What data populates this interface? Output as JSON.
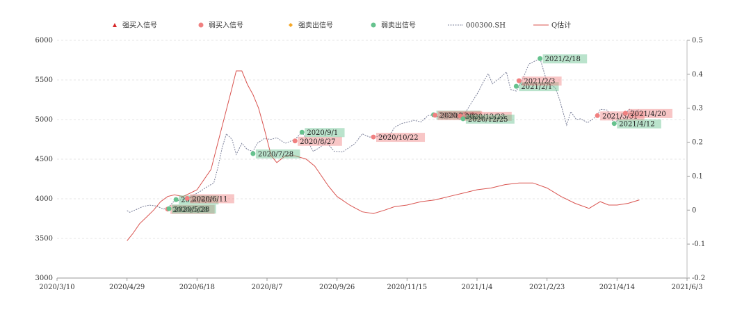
{
  "chart_data": {
    "type": "line",
    "legend": {
      "placement": "top",
      "items": [
        {
          "key": "strong_buy",
          "label": "强买入信号",
          "marker": "triangle",
          "color": "#d62728"
        },
        {
          "key": "weak_buy",
          "label": "弱买入信号",
          "marker": "circle",
          "color": "#f08080"
        },
        {
          "key": "strong_sell",
          "label": "强卖出信号",
          "marker": "diamond",
          "color": "#f5a623"
        },
        {
          "key": "weak_sell",
          "label": "弱卖出信号",
          "marker": "circle",
          "color": "#66c28e"
        },
        {
          "key": "index",
          "label": "000300.SH",
          "marker": "dotted-line",
          "color": "#7a7f99"
        },
        {
          "key": "q",
          "label": "Q估计",
          "marker": "line",
          "color": "#d9534f"
        }
      ]
    },
    "x_axis": {
      "min": "2020-03-10",
      "max": "2021-06-03",
      "ticks": [
        "2020/3/10",
        "2020/4/29",
        "2020/6/18",
        "2020/8/7",
        "2020/9/26",
        "2020/11/15",
        "2021/1/4",
        "2021/2/23",
        "2021/4/14",
        "2021/6/3"
      ]
    },
    "y_left": {
      "min": 3000,
      "max": 6000,
      "ticks": [
        "3000",
        "3500",
        "4000",
        "4500",
        "5000",
        "5500",
        "6000"
      ]
    },
    "y_right": {
      "min": -0.2,
      "max": 0.5,
      "ticks": [
        "-0.2",
        "-0.1",
        "0",
        "0.1",
        "0.2",
        "0.3",
        "0.4",
        "0.5"
      ]
    },
    "grid": true,
    "series": [
      {
        "name": "000300.SH",
        "axis": "left",
        "points": [
          [
            "2020-04-29",
            3850
          ],
          [
            "2020-05-01",
            3830
          ],
          [
            "2020-05-05",
            3860
          ],
          [
            "2020-05-10",
            3900
          ],
          [
            "2020-05-15",
            3920
          ],
          [
            "2020-05-20",
            3910
          ],
          [
            "2020-05-25",
            3870
          ],
          [
            "2020-05-28",
            3880
          ],
          [
            "2020-06-01",
            3960
          ],
          [
            "2020-06-05",
            3980
          ],
          [
            "2020-06-10",
            4000
          ],
          [
            "2020-06-15",
            4040
          ],
          [
            "2020-06-20",
            4090
          ],
          [
            "2020-06-25",
            4150
          ],
          [
            "2020-06-30",
            4200
          ],
          [
            "2020-07-03",
            4400
          ],
          [
            "2020-07-06",
            4650
          ],
          [
            "2020-07-09",
            4820
          ],
          [
            "2020-07-13",
            4750
          ],
          [
            "2020-07-16",
            4560
          ],
          [
            "2020-07-20",
            4700
          ],
          [
            "2020-07-24",
            4620
          ],
          [
            "2020-07-28",
            4600
          ],
          [
            "2020-07-31",
            4700
          ],
          [
            "2020-08-05",
            4760
          ],
          [
            "2020-08-10",
            4750
          ],
          [
            "2020-08-14",
            4770
          ],
          [
            "2020-08-20",
            4700
          ],
          [
            "2020-08-27",
            4750
          ],
          [
            "2020-09-01",
            4840
          ],
          [
            "2020-09-04",
            4760
          ],
          [
            "2020-09-09",
            4600
          ],
          [
            "2020-09-14",
            4650
          ],
          [
            "2020-09-18",
            4720
          ],
          [
            "2020-09-24",
            4600
          ],
          [
            "2020-09-30",
            4590
          ],
          [
            "2020-10-09",
            4700
          ],
          [
            "2020-10-14",
            4820
          ],
          [
            "2020-10-19",
            4780
          ],
          [
            "2020-10-22",
            4780
          ],
          [
            "2020-10-27",
            4790
          ],
          [
            "2020-11-02",
            4780
          ],
          [
            "2020-11-06",
            4900
          ],
          [
            "2020-11-11",
            4950
          ],
          [
            "2020-11-16",
            4970
          ],
          [
            "2020-11-20",
            4990
          ],
          [
            "2020-11-25",
            4970
          ],
          [
            "2020-11-30",
            5050
          ],
          [
            "2020-12-04",
            5060
          ],
          [
            "2020-12-09",
            5020
          ],
          [
            "2020-12-14",
            5010
          ],
          [
            "2020-12-18",
            5050
          ],
          [
            "2020-12-23",
            5000
          ],
          [
            "2020-12-25",
            5040
          ],
          [
            "2020-12-31",
            5210
          ],
          [
            "2021-01-05",
            5350
          ],
          [
            "2021-01-08",
            5460
          ],
          [
            "2021-01-12",
            5580
          ],
          [
            "2021-01-15",
            5450
          ],
          [
            "2021-01-20",
            5520
          ],
          [
            "2021-01-25",
            5600
          ],
          [
            "2021-01-28",
            5380
          ],
          [
            "2021-02-01",
            5360
          ],
          [
            "2021-02-05",
            5480
          ],
          [
            "2021-02-10",
            5700
          ],
          [
            "2021-02-18",
            5770
          ],
          [
            "2021-02-22",
            5530
          ],
          [
            "2021-02-25",
            5450
          ],
          [
            "2021-03-01",
            5400
          ],
          [
            "2021-03-04",
            5250
          ],
          [
            "2021-03-09",
            4930
          ],
          [
            "2021-03-12",
            5100
          ],
          [
            "2021-03-16",
            5000
          ],
          [
            "2021-03-19",
            5010
          ],
          [
            "2021-03-24",
            4960
          ],
          [
            "2021-03-31",
            5050
          ],
          [
            "2021-04-02",
            5130
          ],
          [
            "2021-04-07",
            5120
          ],
          [
            "2021-04-12",
            4950
          ],
          [
            "2021-04-16",
            5020
          ],
          [
            "2021-04-20",
            5080
          ],
          [
            "2021-04-23",
            5130
          ],
          [
            "2021-04-27",
            5100
          ],
          [
            "2021-04-30",
            5130
          ]
        ]
      },
      {
        "name": "Q估计",
        "axis": "right",
        "points": [
          [
            "2020-04-29",
            -0.09
          ],
          [
            "2020-05-03",
            -0.07
          ],
          [
            "2020-05-08",
            -0.04
          ],
          [
            "2020-05-13",
            -0.02
          ],
          [
            "2020-05-18",
            0.0
          ],
          [
            "2020-05-23",
            0.025
          ],
          [
            "2020-05-28",
            0.04
          ],
          [
            "2020-06-02",
            0.045
          ],
          [
            "2020-06-08",
            0.04
          ],
          [
            "2020-06-13",
            0.05
          ],
          [
            "2020-06-18",
            0.06
          ],
          [
            "2020-06-23",
            0.09
          ],
          [
            "2020-06-28",
            0.12
          ],
          [
            "2020-07-03",
            0.2
          ],
          [
            "2020-07-08",
            0.28
          ],
          [
            "2020-07-13",
            0.36
          ],
          [
            "2020-07-16",
            0.41
          ],
          [
            "2020-07-20",
            0.41
          ],
          [
            "2020-07-24",
            0.37
          ],
          [
            "2020-07-28",
            0.34
          ],
          [
            "2020-08-01",
            0.3
          ],
          [
            "2020-08-05",
            0.24
          ],
          [
            "2020-08-10",
            0.16
          ],
          [
            "2020-08-14",
            0.14
          ],
          [
            "2020-08-20",
            0.16
          ],
          [
            "2020-08-27",
            0.16
          ],
          [
            "2020-09-04",
            0.15
          ],
          [
            "2020-09-10",
            0.13
          ],
          [
            "2020-09-15",
            0.1
          ],
          [
            "2020-09-20",
            0.07
          ],
          [
            "2020-09-26",
            0.04
          ],
          [
            "2020-10-05",
            0.015
          ],
          [
            "2020-10-14",
            -0.005
          ],
          [
            "2020-10-22",
            -0.01
          ],
          [
            "2020-10-30",
            0.0
          ],
          [
            "2020-11-06",
            0.01
          ],
          [
            "2020-11-15",
            0.015
          ],
          [
            "2020-11-25",
            0.025
          ],
          [
            "2020-12-05",
            0.03
          ],
          [
            "2020-12-15",
            0.04
          ],
          [
            "2020-12-25",
            0.05
          ],
          [
            "2021-01-04",
            0.06
          ],
          [
            "2021-01-14",
            0.065
          ],
          [
            "2021-01-24",
            0.075
          ],
          [
            "2021-02-03",
            0.08
          ],
          [
            "2021-02-13",
            0.08
          ],
          [
            "2021-02-23",
            0.065
          ],
          [
            "2021-03-05",
            0.04
          ],
          [
            "2021-03-15",
            0.02
          ],
          [
            "2021-03-25",
            0.005
          ],
          [
            "2021-04-02",
            0.025
          ],
          [
            "2021-04-08",
            0.015
          ],
          [
            "2021-04-14",
            0.015
          ],
          [
            "2021-04-22",
            0.02
          ],
          [
            "2021-04-30",
            0.03
          ]
        ]
      }
    ],
    "signals": [
      {
        "date": "2020-05-28",
        "value": 3870,
        "type": "weak_buy",
        "label": "2020/5/28"
      },
      {
        "date": "2020-05-29",
        "value": 3875,
        "type": "weak_sell",
        "label": "2020/5/28"
      },
      {
        "date": "2020-06-03",
        "value": 3990,
        "type": "weak_sell",
        "label": "2020/6/3"
      },
      {
        "date": "2020-06-11",
        "value": 4005,
        "type": "weak_buy",
        "label": "2020/6/11"
      },
      {
        "date": "2020-07-28",
        "value": 4570,
        "type": "weak_sell",
        "label": "2020/7/28"
      },
      {
        "date": "2020-08-27",
        "value": 4730,
        "type": "weak_buy",
        "label": "2020/8/27"
      },
      {
        "date": "2020-09-01",
        "value": 4840,
        "type": "weak_sell",
        "label": "2020/9/1"
      },
      {
        "date": "2020-10-22",
        "value": 4780,
        "type": "weak_buy",
        "label": "2020/10/22"
      },
      {
        "date": "2020-12-04",
        "value": 5060,
        "type": "weak_sell",
        "label": "2020/12/4"
      },
      {
        "date": "2020-12-05",
        "value": 5055,
        "type": "weak_buy",
        "label": "2020/12/4"
      },
      {
        "date": "2020-12-23",
        "value": 5045,
        "type": "weak_buy",
        "label": "2020/12/23"
      },
      {
        "date": "2020-12-25",
        "value": 5010,
        "type": "weak_sell",
        "label": "2020/12/25"
      },
      {
        "date": "2021-02-01",
        "value": 5420,
        "type": "weak_sell",
        "label": "2021/2/1"
      },
      {
        "date": "2021-02-03",
        "value": 5490,
        "type": "weak_buy",
        "label": "2021/2/3"
      },
      {
        "date": "2021-02-18",
        "value": 5770,
        "type": "weak_sell",
        "label": "2021/2/18"
      },
      {
        "date": "2021-03-31",
        "value": 5050,
        "type": "weak_buy",
        "label": "2021/3/31"
      },
      {
        "date": "2021-04-12",
        "value": 4950,
        "type": "weak_sell",
        "label": "2021/4/12"
      },
      {
        "date": "2021-04-20",
        "value": 5080,
        "type": "weak_buy",
        "label": "2021/4/20"
      }
    ]
  }
}
